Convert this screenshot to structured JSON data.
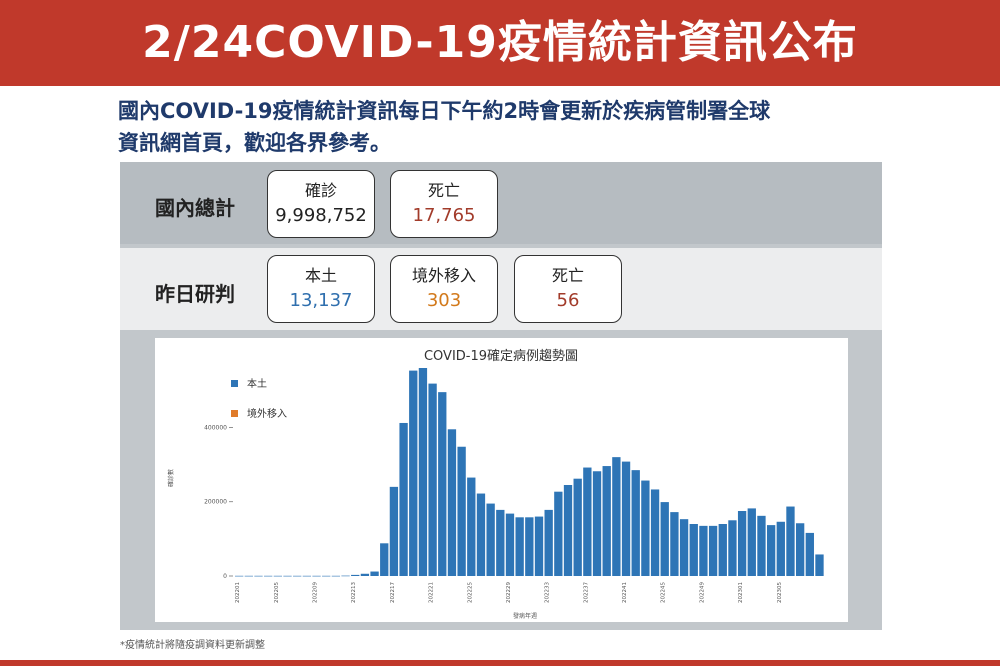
{
  "banner": {
    "title": "2/24COVID-19疫情統計資訊公布"
  },
  "intro": {
    "line1": "國內COVID-19疫情統計資訊每日下午約2時會更新於疾病管制署全球",
    "line2": "資訊網首頁，歡迎各界參考。"
  },
  "stats": {
    "total": {
      "row_label": "國內總計",
      "cards": [
        {
          "label": "確診",
          "value": "9,998,752",
          "color": "#222222"
        },
        {
          "label": "死亡",
          "value": "17,765",
          "color": "#a23b2a"
        }
      ]
    },
    "yesterday": {
      "row_label": "昨日研判",
      "cards": [
        {
          "label": "本土",
          "value": "13,137",
          "color": "#2f6fae"
        },
        {
          "label": "境外移入",
          "value": "303",
          "color": "#d2791b"
        },
        {
          "label": "死亡",
          "value": "56",
          "color": "#a23b2a"
        }
      ]
    }
  },
  "chart_data": {
    "type": "bar",
    "title": "COVID-19確定病例趨勢圖",
    "xlabel": "發病年週",
    "ylabel": "確診數",
    "ylim": [
      0,
      560000
    ],
    "yticks": [
      0,
      200000,
      400000
    ],
    "ytick_labels": [
      "0",
      "200000",
      "400000"
    ],
    "legend_position": "top-left",
    "tick_labels": [
      "202201",
      "202205",
      "202209",
      "202213",
      "202217",
      "202221",
      "202225",
      "202229",
      "202233",
      "202237",
      "202241",
      "202245",
      "202249",
      "202301",
      "202305"
    ],
    "tick_indices": [
      0,
      4,
      8,
      12,
      16,
      20,
      24,
      28,
      32,
      36,
      40,
      44,
      48,
      52,
      56
    ],
    "series": [
      {
        "name": "本土",
        "color": "#2e75b6",
        "values": [
          500,
          500,
          500,
          500,
          500,
          500,
          500,
          500,
          500,
          500,
          500,
          1000,
          3000,
          6000,
          12000,
          88000,
          240000,
          412000,
          553000,
          560000,
          518000,
          495000,
          395000,
          348000,
          265000,
          222000,
          195000,
          178000,
          168000,
          158000,
          158000,
          160000,
          178000,
          227000,
          245000,
          262000,
          292000,
          282000,
          296000,
          320000,
          308000,
          285000,
          257000,
          233000,
          199000,
          172000,
          153000,
          140000,
          135000,
          135000,
          140000,
          150000,
          175000,
          182000,
          162000,
          137000,
          146000,
          187000,
          142000,
          116000,
          58000
        ]
      },
      {
        "name": "境外移入",
        "color": "#e07b2a",
        "values": [
          0,
          0,
          0,
          0,
          0,
          0,
          0,
          0,
          0,
          0,
          0,
          0,
          0,
          0,
          0,
          0,
          0,
          0,
          0,
          0,
          0,
          0,
          0,
          0,
          0,
          0,
          0,
          0,
          0,
          0,
          0,
          0,
          0,
          0,
          0,
          0,
          0,
          0,
          0,
          0,
          0,
          0,
          0,
          0,
          0,
          0,
          0,
          0,
          0,
          0,
          0,
          0,
          0,
          0,
          0,
          0,
          0,
          0,
          0,
          0,
          0
        ]
      }
    ]
  },
  "footnote": "*疫情統計將隨疫調資料更新調整"
}
